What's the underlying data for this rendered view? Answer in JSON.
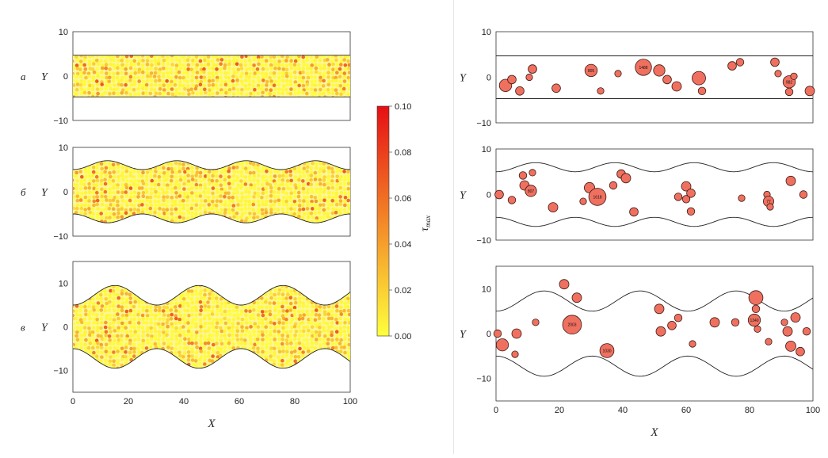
{
  "figure": {
    "x_axis_label": "X",
    "y_axis_label": "Y",
    "colorbar": {
      "label": "τ",
      "label_sub": "max",
      "ticks": [
        "0.10",
        "0.08",
        "0.06",
        "0.04",
        "0.02",
        "0.00"
      ],
      "range": [
        0,
        0.1
      ]
    }
  },
  "chart_data": [
    {
      "type": "scatter",
      "id": "left-a",
      "panel_label": "а",
      "xlim": [
        0,
        100
      ],
      "ylim": [
        -10,
        10
      ],
      "yticks": [
        "10",
        "0",
        "−10"
      ],
      "xticks": [],
      "wall": {
        "shape": "flat",
        "half_width": 4.7,
        "amplitude": 0,
        "periods": 0
      },
      "fill": "particles",
      "mean_tau": 0.018,
      "bubbles": []
    },
    {
      "type": "scatter",
      "id": "left-b",
      "panel_label": "б",
      "xlim": [
        0,
        100
      ],
      "ylim": [
        -10,
        10
      ],
      "yticks": [
        "10",
        "0",
        "−10"
      ],
      "xticks": [],
      "wall": {
        "shape": "wavy",
        "half_width": 4.7,
        "amplitude": 2.0,
        "periods": 4
      },
      "fill": "particles",
      "mean_tau": 0.018,
      "bubbles": []
    },
    {
      "type": "scatter",
      "id": "left-c",
      "panel_label": "в",
      "xlim": [
        0,
        100
      ],
      "ylim": [
        -15,
        15
      ],
      "yticks": [
        "10",
        "0",
        "−10"
      ],
      "xticks": [
        "0",
        "20",
        "40",
        "60",
        "80",
        "100"
      ],
      "wall": {
        "shape": "wavy",
        "half_width": 4.7,
        "amplitude": 4.5,
        "periods": 3.3
      },
      "fill": "particles",
      "mean_tau": 0.018,
      "bubbles": []
    },
    {
      "type": "scatter",
      "id": "right-a",
      "panel_label": "",
      "xlim": [
        0,
        100
      ],
      "ylim": [
        -10,
        10
      ],
      "yticks": [
        "10",
        "0",
        "−10"
      ],
      "xticks": [],
      "wall": {
        "shape": "flat",
        "half_width": 4.7,
        "amplitude": 0,
        "periods": 0
      },
      "fill": "bubbles",
      "bubbles": [
        {
          "x": 3,
          "y": -1.8,
          "r": 1.3
        },
        {
          "x": 5,
          "y": -0.5,
          "r": 0.9
        },
        {
          "x": 7.5,
          "y": -3,
          "r": 0.9
        },
        {
          "x": 10.5,
          "y": 0,
          "r": 0.7
        },
        {
          "x": 11.5,
          "y": 1.8,
          "r": 0.9
        },
        {
          "x": 19,
          "y": -2.4,
          "r": 0.9
        },
        {
          "x": 30,
          "y": 1.5,
          "r": 1.3,
          "label": "805"
        },
        {
          "x": 33,
          "y": -3,
          "r": 0.7
        },
        {
          "x": 38.5,
          "y": 0.8,
          "r": 0.7
        },
        {
          "x": 46.5,
          "y": 2.2,
          "r": 1.7,
          "label": "1488"
        },
        {
          "x": 51.5,
          "y": 1.5,
          "r": 1.2
        },
        {
          "x": 54,
          "y": -0.5,
          "r": 0.9
        },
        {
          "x": 57,
          "y": -2,
          "r": 1.0
        },
        {
          "x": 64,
          "y": -0.2,
          "r": 1.4
        },
        {
          "x": 65,
          "y": -3,
          "r": 0.8
        },
        {
          "x": 74.5,
          "y": 2.5,
          "r": 0.9
        },
        {
          "x": 77,
          "y": 3.3,
          "r": 0.8
        },
        {
          "x": 88,
          "y": 3.3,
          "r": 0.9
        },
        {
          "x": 89,
          "y": 0.8,
          "r": 0.7
        },
        {
          "x": 92.5,
          "y": -1,
          "r": 1.3,
          "label": "982"
        },
        {
          "x": 94,
          "y": 0.2,
          "r": 0.7
        },
        {
          "x": 92.5,
          "y": -3.2,
          "r": 0.8
        },
        {
          "x": 99,
          "y": -3,
          "r": 1.0
        }
      ]
    },
    {
      "type": "scatter",
      "id": "right-b",
      "panel_label": "",
      "xlim": [
        0,
        100
      ],
      "ylim": [
        -10,
        10
      ],
      "yticks": [
        "10",
        "0",
        "−10"
      ],
      "xticks": [],
      "wall": {
        "shape": "wavy",
        "half_width": 4.7,
        "amplitude": 2.0,
        "periods": 4
      },
      "fill": "bubbles",
      "bubbles": [
        {
          "x": 1,
          "y": 0,
          "r": 0.9
        },
        {
          "x": 5,
          "y": -1.2,
          "r": 0.8
        },
        {
          "x": 8.5,
          "y": 4.2,
          "r": 0.8
        },
        {
          "x": 9,
          "y": 2,
          "r": 1.0
        },
        {
          "x": 11,
          "y": 0.8,
          "r": 1.2,
          "label": "807"
        },
        {
          "x": 11.5,
          "y": 4.8,
          "r": 0.7
        },
        {
          "x": 18,
          "y": -2.8,
          "r": 1.0
        },
        {
          "x": 27.5,
          "y": -1.5,
          "r": 0.7
        },
        {
          "x": 29.5,
          "y": 1.5,
          "r": 1.1
        },
        {
          "x": 32,
          "y": -0.5,
          "r": 1.8,
          "label": "1618"
        },
        {
          "x": 37,
          "y": 2,
          "r": 0.8
        },
        {
          "x": 39.5,
          "y": 4.5,
          "r": 0.9
        },
        {
          "x": 41,
          "y": 3.6,
          "r": 1.0
        },
        {
          "x": 43.5,
          "y": -3.8,
          "r": 0.9
        },
        {
          "x": 57.5,
          "y": -0.5,
          "r": 0.8
        },
        {
          "x": 60,
          "y": 1.8,
          "r": 1.0
        },
        {
          "x": 60,
          "y": -1,
          "r": 0.8
        },
        {
          "x": 61.5,
          "y": 0.3,
          "r": 0.9
        },
        {
          "x": 61.5,
          "y": -3.7,
          "r": 0.8
        },
        {
          "x": 77.5,
          "y": -0.8,
          "r": 0.7
        },
        {
          "x": 85.5,
          "y": 0,
          "r": 0.7
        },
        {
          "x": 86,
          "y": -1.5,
          "r": 1.1,
          "label": "77"
        },
        {
          "x": 86.5,
          "y": -2.7,
          "r": 0.7
        },
        {
          "x": 93,
          "y": 3,
          "r": 1.0
        },
        {
          "x": 97,
          "y": 0,
          "r": 0.8
        }
      ]
    },
    {
      "type": "scatter",
      "id": "right-c",
      "panel_label": "",
      "xlim": [
        0,
        100
      ],
      "ylim": [
        -15,
        15
      ],
      "yticks": [
        "10",
        "0",
        "−10"
      ],
      "xticks": [
        "0",
        "20",
        "40",
        "60",
        "80",
        "100"
      ],
      "wall": {
        "shape": "wavy",
        "half_width": 4.7,
        "amplitude": 4.5,
        "periods": 3.3
      },
      "fill": "bubbles",
      "bubbles": [
        {
          "x": 0.5,
          "y": 0,
          "r": 0.8
        },
        {
          "x": 2,
          "y": -2.5,
          "r": 1.3
        },
        {
          "x": 6,
          "y": -4.6,
          "r": 0.7
        },
        {
          "x": 6.5,
          "y": 0,
          "r": 1.0
        },
        {
          "x": 12.5,
          "y": 2.5,
          "r": 0.7
        },
        {
          "x": 21.5,
          "y": 11,
          "r": 1.0
        },
        {
          "x": 24,
          "y": 2,
          "r": 2.0,
          "label": "2003"
        },
        {
          "x": 25.5,
          "y": 8,
          "r": 1.0
        },
        {
          "x": 35,
          "y": -3.8,
          "r": 1.5,
          "label": "1030"
        },
        {
          "x": 51.5,
          "y": 5.5,
          "r": 1.0
        },
        {
          "x": 52,
          "y": 0.5,
          "r": 1.0
        },
        {
          "x": 55.5,
          "y": 1.8,
          "r": 0.9
        },
        {
          "x": 57.5,
          "y": 3.5,
          "r": 0.8
        },
        {
          "x": 62,
          "y": -2.3,
          "r": 0.7
        },
        {
          "x": 69,
          "y": 2.5,
          "r": 1.0
        },
        {
          "x": 75.5,
          "y": 2.5,
          "r": 0.8
        },
        {
          "x": 81.5,
          "y": 3,
          "r": 1.3,
          "label": "1340"
        },
        {
          "x": 82,
          "y": 8,
          "r": 1.5
        },
        {
          "x": 82,
          "y": 5.5,
          "r": 0.8
        },
        {
          "x": 82.5,
          "y": 1,
          "r": 0.7
        },
        {
          "x": 86,
          "y": -1.8,
          "r": 0.7
        },
        {
          "x": 91,
          "y": 2.5,
          "r": 0.7
        },
        {
          "x": 92,
          "y": 0.5,
          "r": 1.0
        },
        {
          "x": 93,
          "y": -2.8,
          "r": 1.1
        },
        {
          "x": 94.5,
          "y": 3.6,
          "r": 1.0
        },
        {
          "x": 96,
          "y": -4,
          "r": 0.9
        },
        {
          "x": 98,
          "y": 0.5,
          "r": 0.8
        }
      ]
    }
  ]
}
